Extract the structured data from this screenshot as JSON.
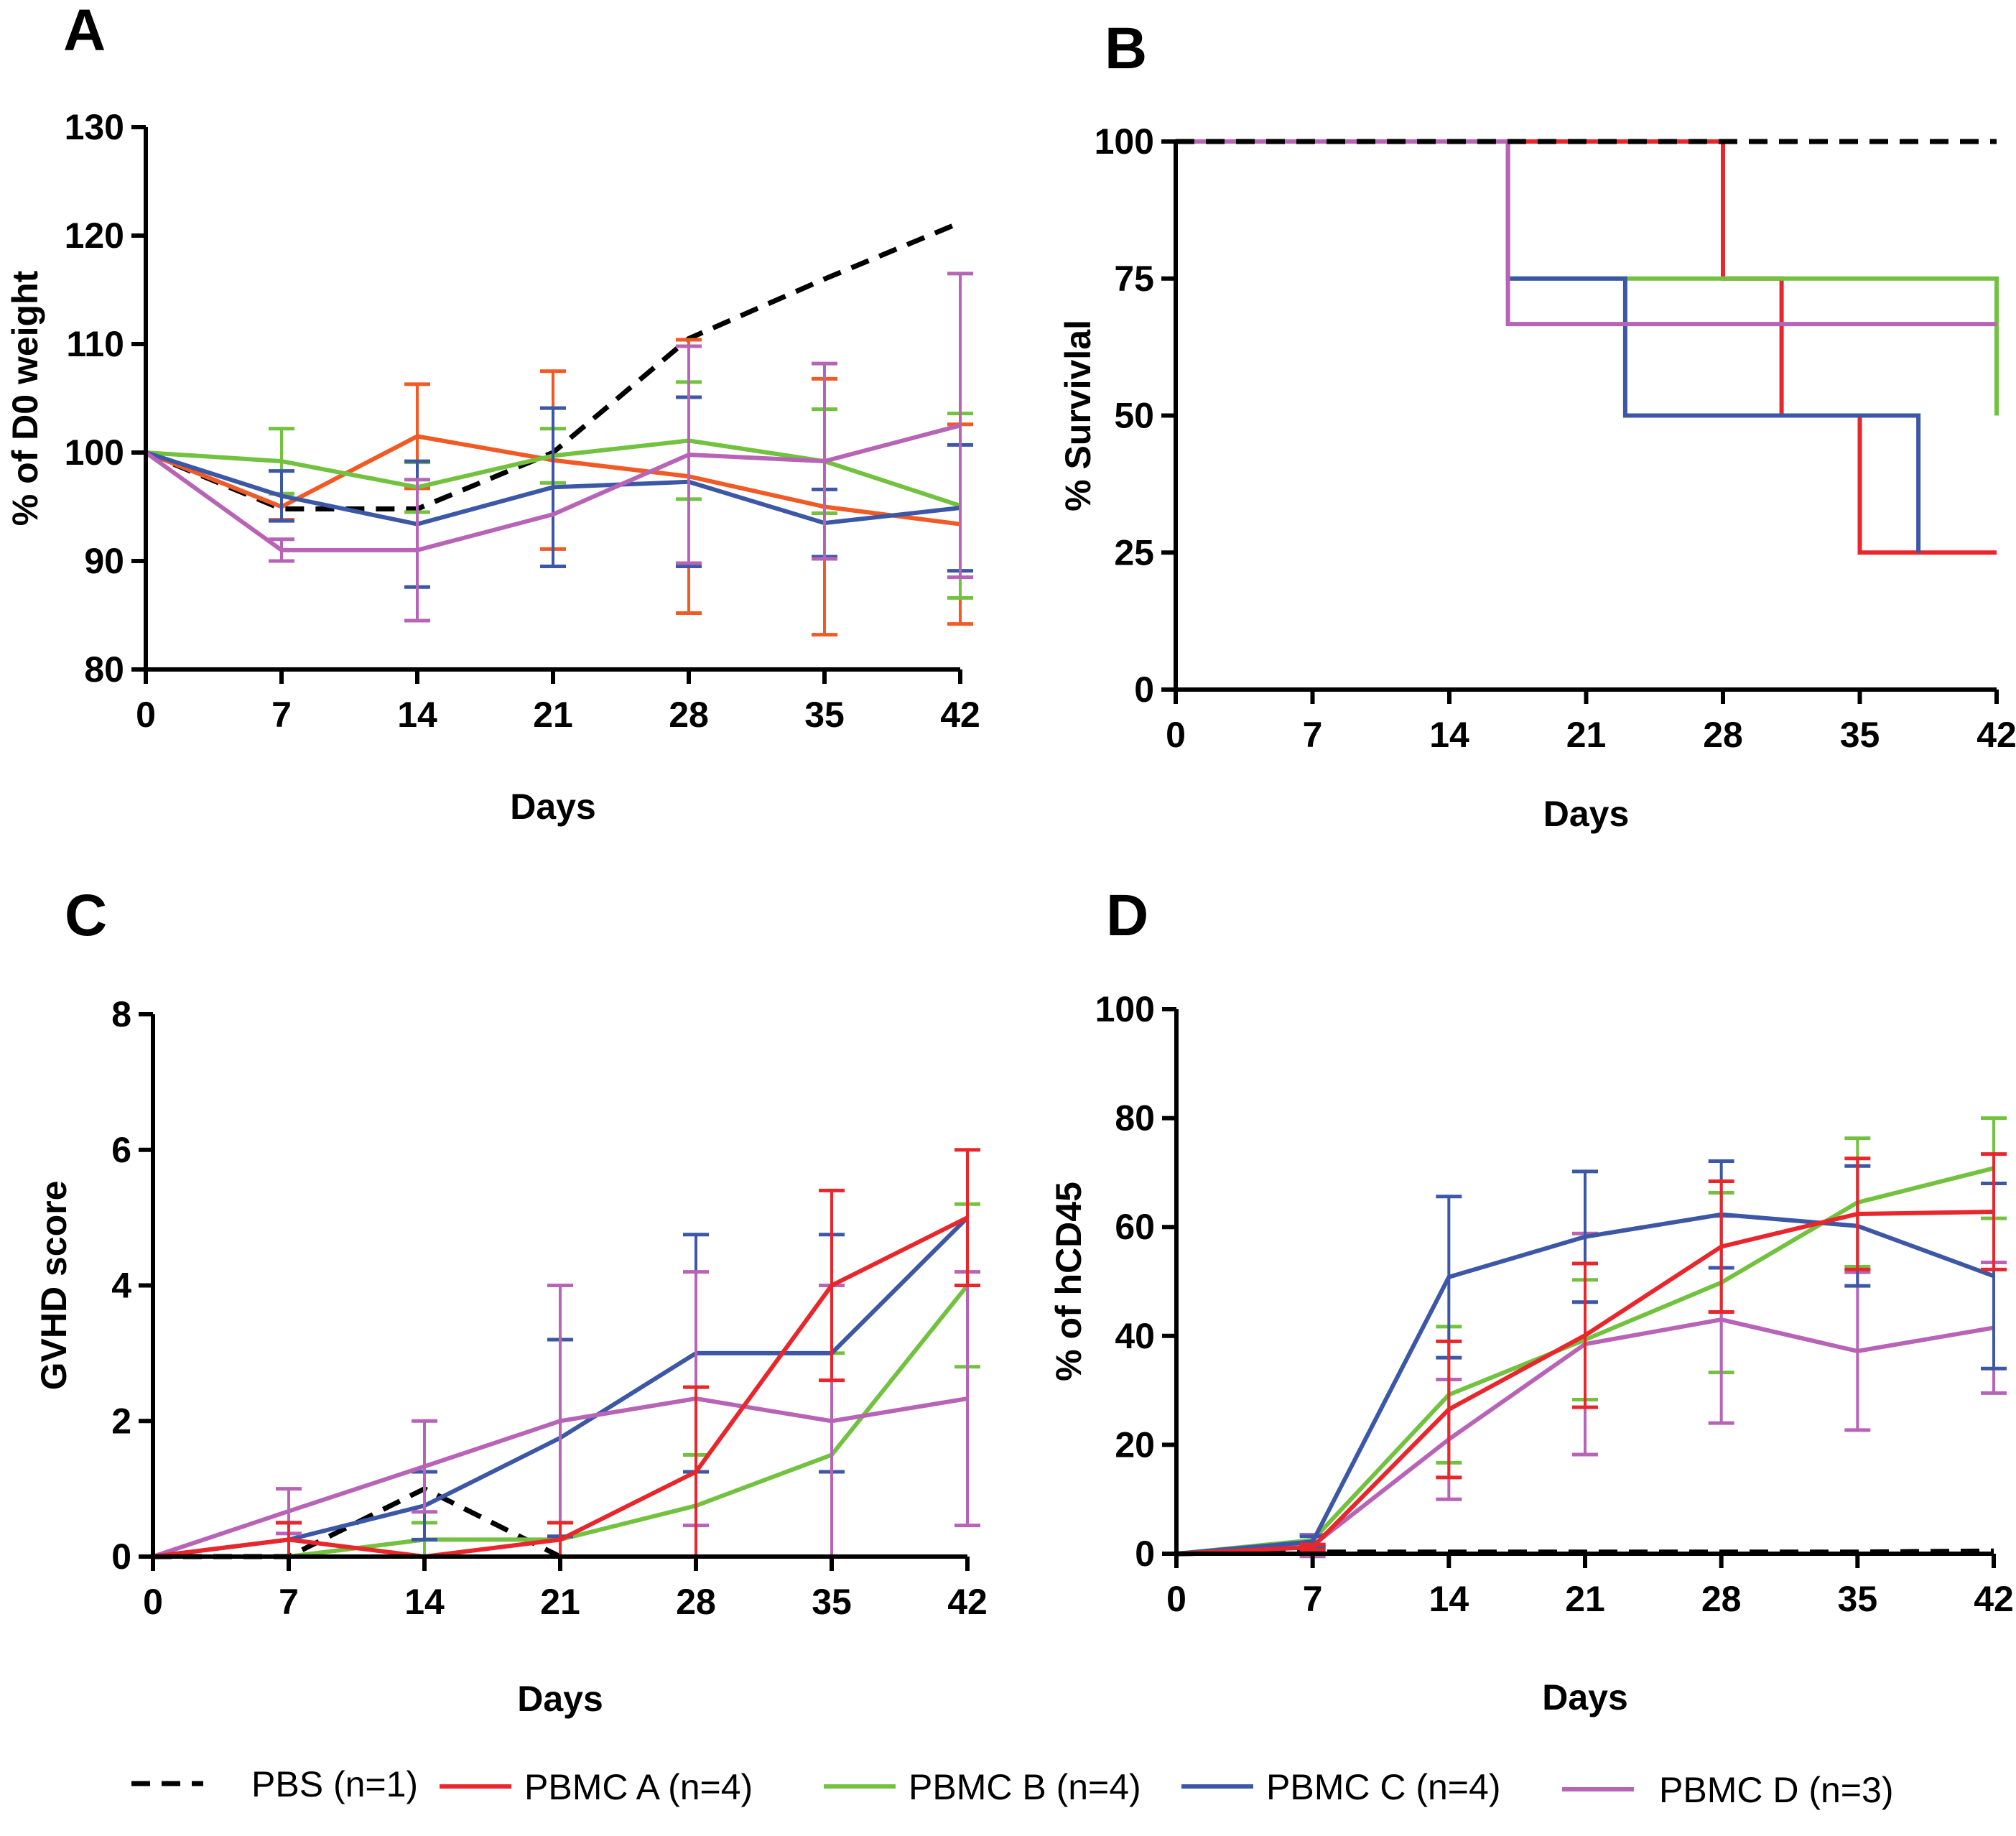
{
  "legend": [
    {
      "key": "pbs",
      "label": "PBS (n=1)",
      "color": "#000000",
      "dashed": true
    },
    {
      "key": "pbmcA",
      "label": "PBMC A (n=4)",
      "color": "#e8262b",
      "dashed": false
    },
    {
      "key": "pbmcB",
      "label": "PBMC B (n=4)",
      "color": "#72c240",
      "dashed": false
    },
    {
      "key": "pbmcC",
      "label": "PBMC C (n=4)",
      "color": "#3d57a7",
      "dashed": false
    },
    {
      "key": "pbmcD",
      "label": "PBMC D (n=3)",
      "color": "#b864b6",
      "dashed": false
    }
  ],
  "chart_data": [
    {
      "panel": "A",
      "type": "line",
      "xlabel": "Days",
      "ylabel": "% of D0 weight",
      "xlim": [
        0,
        42
      ],
      "ylim": [
        80,
        130
      ],
      "xticks": [
        0,
        7,
        14,
        21,
        28,
        35,
        42
      ],
      "yticks": [
        80,
        90,
        100,
        110,
        120,
        130
      ],
      "series": [
        {
          "key": "pbs",
          "color": "#000000",
          "dashed": true,
          "x": [
            0,
            7,
            14,
            21,
            28,
            35,
            42
          ],
          "y": [
            100,
            94.8,
            94.8,
            100,
            110.5,
            116,
            121.2
          ]
        },
        {
          "key": "pbmcA",
          "color": "#f15a24",
          "dashed": false,
          "x": [
            0,
            7,
            14,
            21,
            28,
            35,
            42
          ],
          "y": [
            100,
            95,
            101.5,
            99.3,
            97.8,
            95,
            93.4
          ],
          "err": [
            0,
            1.2,
            4.8,
            8.2,
            12.6,
            11.8,
            9.2
          ]
        },
        {
          "key": "pbmcB",
          "color": "#72c240",
          "dashed": false,
          "x": [
            0,
            7,
            14,
            21,
            28,
            35,
            42
          ],
          "y": [
            100,
            99.2,
            96.8,
            99.7,
            101.1,
            99.2,
            95.1
          ],
          "err": [
            0,
            3,
            2.3,
            2.5,
            5.4,
            4.8,
            8.5
          ]
        },
        {
          "key": "pbmcC",
          "color": "#3d57a7",
          "dashed": false,
          "x": [
            0,
            7,
            14,
            21,
            28,
            35,
            42
          ],
          "y": [
            100,
            96,
            93.4,
            96.8,
            97.3,
            93.5,
            94.9
          ],
          "err": [
            0,
            2.3,
            5.8,
            7.3,
            7.8,
            3.1,
            5.8
          ]
        },
        {
          "key": "pbmcD",
          "color": "#b864b6",
          "dashed": false,
          "x": [
            0,
            7,
            14,
            21,
            28,
            35,
            42
          ],
          "y": [
            100,
            91,
            91,
            94.3,
            99.8,
            99.2,
            102.5
          ],
          "err": [
            0,
            1,
            6.5,
            0,
            10,
            9,
            14
          ]
        }
      ]
    },
    {
      "panel": "B",
      "type": "step",
      "xlabel": "Days",
      "ylabel": "% Survivlal",
      "xlim": [
        0,
        42
      ],
      "ylim": [
        0,
        100
      ],
      "xticks": [
        0,
        7,
        14,
        21,
        28,
        35,
        42
      ],
      "yticks": [
        0,
        25,
        50,
        75,
        100
      ],
      "series": [
        {
          "key": "pbmcA",
          "color": "#e8262b",
          "dashed": false,
          "x": [
            0,
            28,
            28,
            31,
            31,
            35,
            35,
            42
          ],
          "y": [
            100,
            100,
            75,
            75,
            50,
            50,
            25,
            25
          ]
        },
        {
          "key": "pbmcB",
          "color": "#72c240",
          "dashed": false,
          "x": [
            0,
            17,
            17,
            42,
            42
          ],
          "y": [
            100,
            100,
            75,
            75,
            50
          ]
        },
        {
          "key": "pbmcC",
          "color": "#3d57a7",
          "dashed": false,
          "x": [
            0,
            17,
            17,
            23,
            23,
            38,
            38
          ],
          "y": [
            100,
            100,
            75,
            75,
            50,
            50,
            25
          ]
        },
        {
          "key": "pbmcD",
          "color": "#b864b6",
          "dashed": false,
          "x": [
            0,
            17,
            17,
            42
          ],
          "y": [
            100,
            100,
            66.7,
            66.7
          ]
        },
        {
          "key": "pbs",
          "color": "#000000",
          "dashed": true,
          "x": [
            0,
            42
          ],
          "y": [
            100,
            100
          ]
        }
      ]
    },
    {
      "panel": "C",
      "type": "line",
      "xlabel": "Days",
      "ylabel": "GVHD score",
      "xlim": [
        0,
        42
      ],
      "ylim": [
        0,
        8
      ],
      "xticks": [
        0,
        7,
        14,
        21,
        28,
        35,
        42
      ],
      "yticks": [
        0,
        2,
        4,
        6,
        8
      ],
      "series": [
        {
          "key": "pbs",
          "color": "#000000",
          "dashed": true,
          "x": [
            0,
            7,
            14,
            21
          ],
          "y": [
            0,
            0,
            1,
            0
          ]
        },
        {
          "key": "pbmcB",
          "color": "#72c240",
          "dashed": false,
          "x": [
            0,
            7,
            14,
            21,
            28,
            35,
            42
          ],
          "y": [
            0,
            0,
            0.25,
            0.25,
            0.75,
            1.5,
            4
          ],
          "err": [
            0,
            0,
            0.25,
            0.25,
            0.75,
            1.5,
            1.2
          ]
        },
        {
          "key": "pbmcC",
          "color": "#3d57a7",
          "dashed": false,
          "x": [
            0,
            7,
            14,
            21,
            28,
            35,
            42
          ],
          "y": [
            0,
            0.25,
            0.75,
            1.75,
            3,
            3,
            5
          ],
          "err": [
            0,
            0.25,
            0.5,
            1.45,
            1.75,
            1.75,
            0
          ]
        },
        {
          "key": "pbmcD",
          "color": "#b864b6",
          "dashed": false,
          "x": [
            0,
            7,
            14,
            21,
            28,
            35,
            42
          ],
          "y": [
            0,
            0.67,
            1.33,
            2,
            2.33,
            2,
            2.33
          ],
          "err": [
            0,
            0.33,
            0.67,
            2,
            1.87,
            2,
            1.87
          ]
        },
        {
          "key": "pbmcA",
          "color": "#e8262b",
          "dashed": false,
          "x": [
            0,
            7,
            14,
            21,
            28,
            35,
            42
          ],
          "y": [
            0,
            0.25,
            0,
            0.25,
            1.25,
            4,
            5
          ],
          "err": [
            0,
            0.25,
            0,
            0.25,
            1.25,
            1.4,
            1
          ]
        }
      ]
    },
    {
      "panel": "D",
      "type": "line",
      "xlabel": "Days",
      "ylabel": "% of hCD45",
      "xlim": [
        0,
        42
      ],
      "ylim": [
        0,
        100
      ],
      "xticks": [
        0,
        7,
        14,
        21,
        28,
        35,
        42
      ],
      "yticks": [
        0,
        20,
        40,
        60,
        80,
        100
      ],
      "series": [
        {
          "key": "pbs",
          "color": "#000000",
          "dashed": true,
          "x": [
            0,
            7,
            14,
            21,
            28,
            35,
            42
          ],
          "y": [
            0,
            0.3,
            0.3,
            0.3,
            0.3,
            0.3,
            0.5
          ]
        },
        {
          "key": "pbmcB",
          "color": "#72c240",
          "dashed": false,
          "x": [
            0,
            7,
            14,
            21,
            28,
            35,
            42
          ],
          "y": [
            0,
            2.5,
            29.2,
            39.3,
            49.8,
            64.5,
            70.8
          ],
          "err": [
            0,
            1,
            12.5,
            11,
            16.5,
            11.8,
            9.2
          ]
        },
        {
          "key": "pbmcD",
          "color": "#b864b6",
          "dashed": false,
          "x": [
            0,
            7,
            14,
            21,
            28,
            35,
            42
          ],
          "y": [
            0,
            1.5,
            21,
            38.5,
            43,
            37.2,
            41.5
          ],
          "err": [
            0,
            2,
            11,
            20.3,
            19,
            14.5,
            12
          ]
        },
        {
          "key": "pbmcC",
          "color": "#3d57a7",
          "dashed": false,
          "x": [
            0,
            7,
            14,
            21,
            28,
            35,
            42
          ],
          "y": [
            0,
            2.2,
            50.8,
            58.2,
            62.3,
            60.2,
            51
          ],
          "err": [
            0,
            1,
            14.8,
            12,
            9.8,
            11,
            17
          ]
        },
        {
          "key": "pbmcA",
          "color": "#e8262b",
          "dashed": false,
          "x": [
            0,
            7,
            14,
            21,
            28,
            35,
            42
          ],
          "y": [
            0,
            1.2,
            26.5,
            40.1,
            56.4,
            62.4,
            62.8
          ],
          "err": [
            0,
            0.5,
            12.5,
            13.2,
            12,
            10.2,
            10.6
          ]
        }
      ]
    }
  ]
}
